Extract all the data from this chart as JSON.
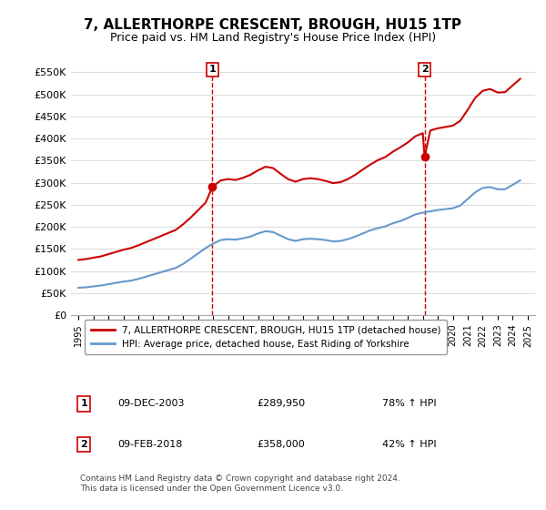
{
  "title": "7, ALLERTHORPE CRESCENT, BROUGH, HU15 1TP",
  "subtitle": "Price paid vs. HM Land Registry's House Price Index (HPI)",
  "title_fontsize": 11,
  "subtitle_fontsize": 9,
  "ylim": [
    0,
    575000
  ],
  "yticks": [
    0,
    50000,
    100000,
    150000,
    200000,
    250000,
    300000,
    350000,
    400000,
    450000,
    500000,
    550000
  ],
  "ylabel_format": "£{0}K",
  "red_color": "#cc0000",
  "blue_color": "#6699cc",
  "background_color": "#ffffff",
  "grid_color": "#dddddd",
  "legend_label_red": "7, ALLERTHORPE CRESCENT, BROUGH, HU15 1TP (detached house)",
  "legend_label_blue": "HPI: Average price, detached house, East Riding of Yorkshire",
  "sale1_date_num": 2003.94,
  "sale1_price": 289950,
  "sale1_label": "1",
  "sale1_date_str": "09-DEC-2003",
  "sale1_price_str": "£289,950",
  "sale1_pct": "78% ↑ HPI",
  "sale2_date_num": 2018.12,
  "sale2_price": 358000,
  "sale2_label": "2",
  "sale2_date_str": "09-FEB-2018",
  "sale2_price_str": "£358,000",
  "sale2_pct": "42% ↑ HPI",
  "footnote": "Contains HM Land Registry data © Crown copyright and database right 2024.\nThis data is licensed under the Open Government Licence v3.0.",
  "hpi_years": [
    1995.0,
    1995.5,
    1996.0,
    1996.5,
    1997.0,
    1997.5,
    1998.0,
    1998.5,
    1999.0,
    1999.5,
    2000.0,
    2000.5,
    2001.0,
    2001.5,
    2002.0,
    2002.5,
    2003.0,
    2003.5,
    2004.0,
    2004.5,
    2005.0,
    2005.5,
    2006.0,
    2006.5,
    2007.0,
    2007.5,
    2008.0,
    2008.5,
    2009.0,
    2009.5,
    2010.0,
    2010.5,
    2011.0,
    2011.5,
    2012.0,
    2012.5,
    2013.0,
    2013.5,
    2014.0,
    2014.5,
    2015.0,
    2015.5,
    2016.0,
    2016.5,
    2017.0,
    2017.5,
    2018.0,
    2018.5,
    2019.0,
    2019.5,
    2020.0,
    2020.5,
    2021.0,
    2021.5,
    2022.0,
    2022.5,
    2023.0,
    2023.5,
    2024.0,
    2024.5
  ],
  "hpi_values": [
    62000,
    63000,
    65000,
    67000,
    70000,
    73000,
    76000,
    78000,
    82000,
    87000,
    92000,
    97000,
    102000,
    107000,
    116000,
    128000,
    140000,
    152000,
    162000,
    170000,
    172000,
    171000,
    174000,
    178000,
    185000,
    190000,
    188000,
    180000,
    172000,
    168000,
    172000,
    173000,
    172000,
    170000,
    167000,
    168000,
    172000,
    178000,
    185000,
    192000,
    197000,
    201000,
    208000,
    213000,
    220000,
    228000,
    232000,
    235000,
    238000,
    240000,
    242000,
    248000,
    263000,
    278000,
    288000,
    290000,
    285000,
    285000,
    295000,
    305000
  ],
  "red_years": [
    1995.0,
    1995.5,
    1996.0,
    1996.5,
    1997.0,
    1997.5,
    1998.0,
    1998.5,
    1999.0,
    1999.5,
    2000.0,
    2000.5,
    2001.0,
    2001.5,
    2002.0,
    2002.5,
    2003.0,
    2003.5,
    2003.94,
    2004.5,
    2005.0,
    2005.5,
    2006.0,
    2006.5,
    2007.0,
    2007.5,
    2008.0,
    2008.5,
    2009.0,
    2009.5,
    2010.0,
    2010.5,
    2011.0,
    2011.5,
    2012.0,
    2012.5,
    2013.0,
    2013.5,
    2014.0,
    2014.5,
    2015.0,
    2015.5,
    2016.0,
    2016.5,
    2017.0,
    2017.5,
    2018.0,
    2018.12,
    2018.5,
    2019.0,
    2019.5,
    2020.0,
    2020.5,
    2021.0,
    2021.5,
    2022.0,
    2022.5,
    2023.0,
    2023.5,
    2024.0,
    2024.5
  ],
  "red_values": [
    125000,
    127000,
    130000,
    133000,
    138000,
    143000,
    148000,
    152000,
    158000,
    165000,
    172000,
    179000,
    186000,
    193000,
    206000,
    221000,
    238000,
    255000,
    289950,
    305000,
    308000,
    306000,
    311000,
    318000,
    328000,
    336000,
    333000,
    320000,
    308000,
    302000,
    308000,
    310000,
    308000,
    304000,
    299000,
    301000,
    308000,
    318000,
    330000,
    341000,
    351000,
    358000,
    370000,
    380000,
    391000,
    405000,
    412000,
    358000,
    418000,
    423000,
    426000,
    429000,
    440000,
    465000,
    492000,
    508000,
    512000,
    504000,
    505000,
    520000,
    535000
  ]
}
